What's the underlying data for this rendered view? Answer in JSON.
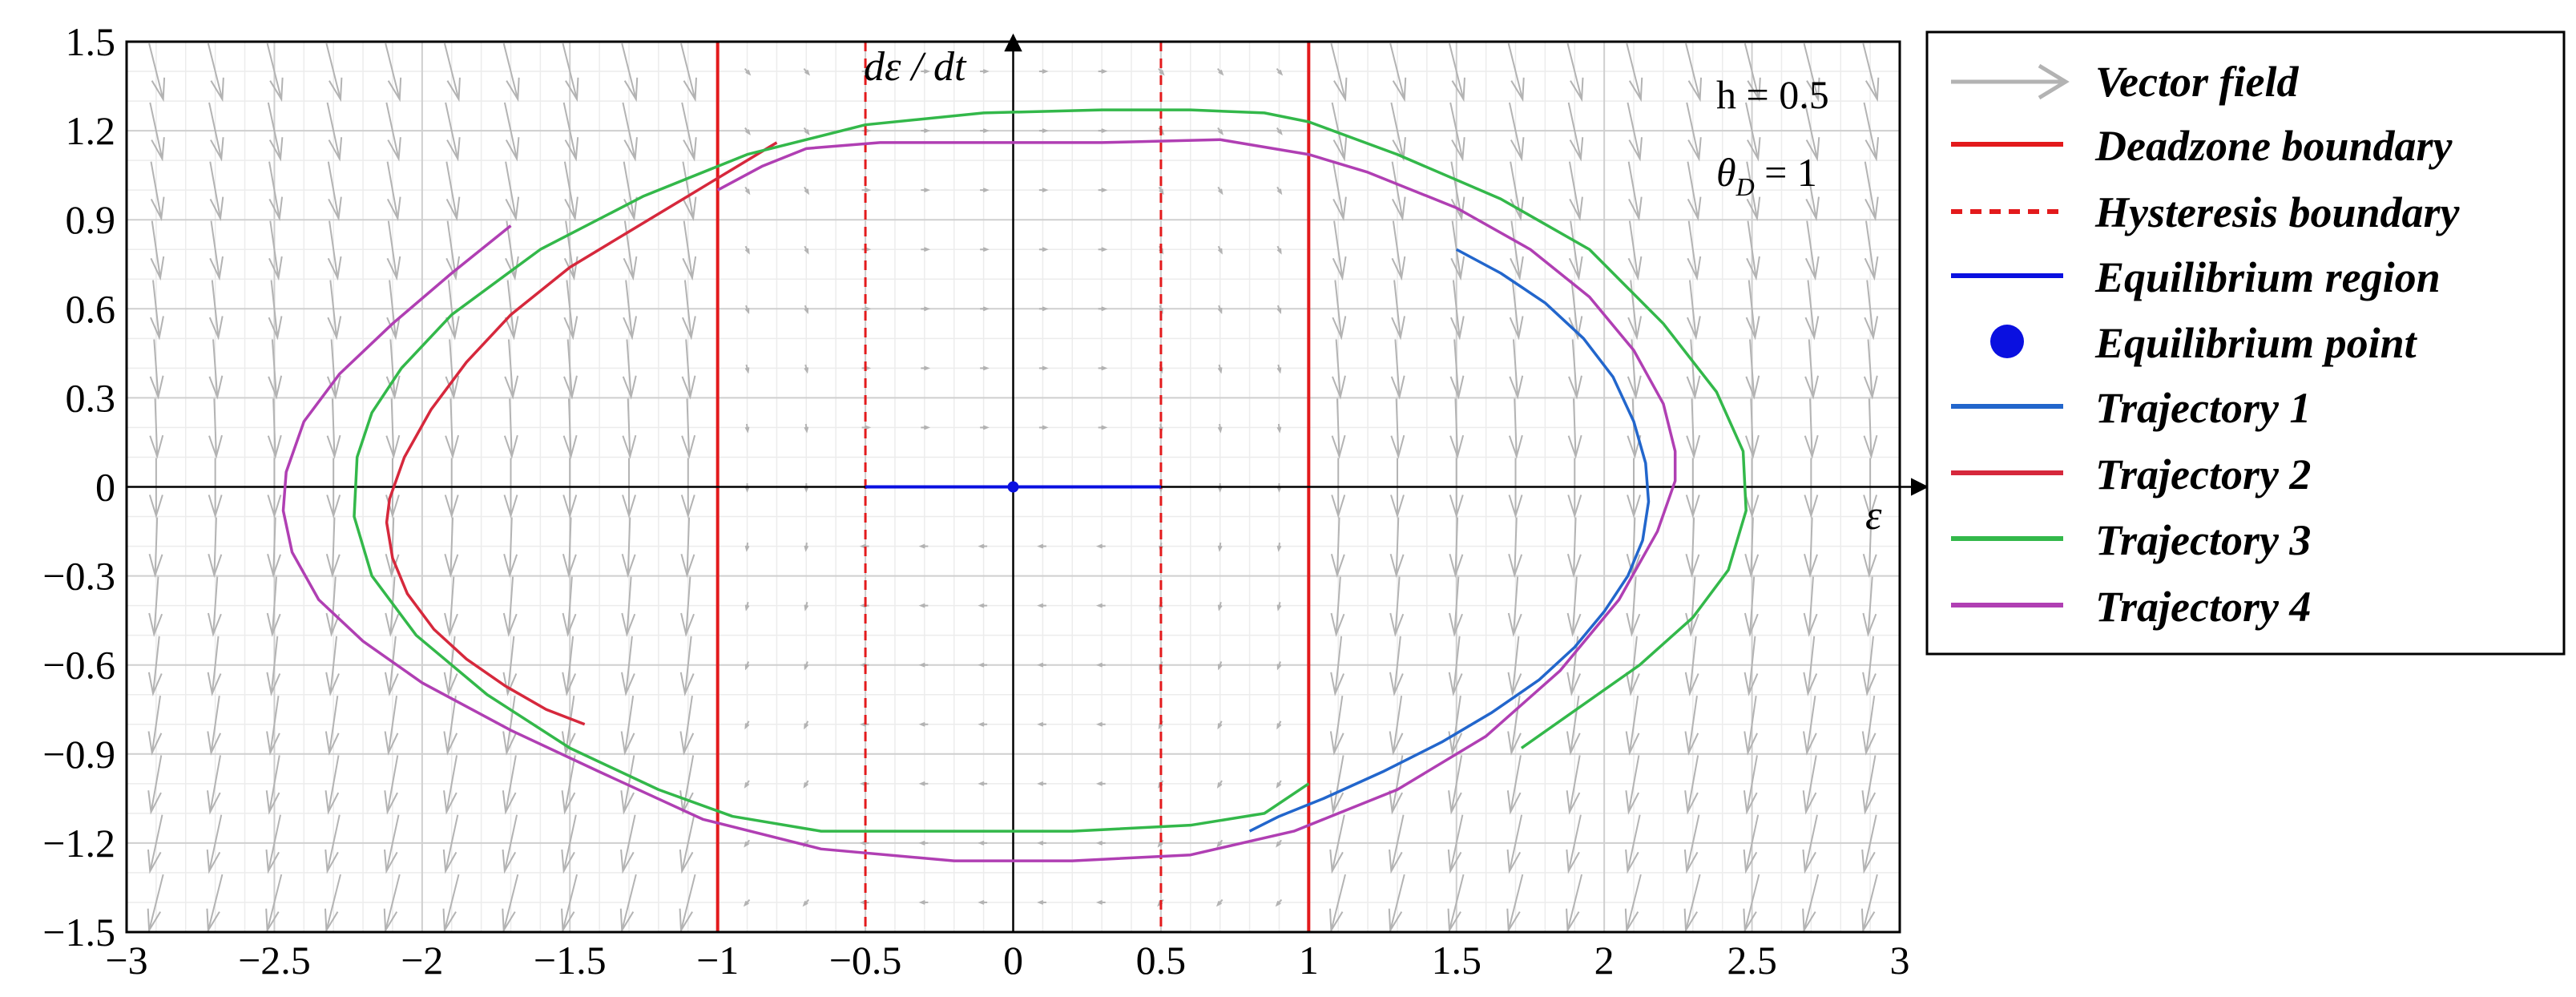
{
  "chart_data": {
    "type": "line",
    "xlabel": "ε",
    "ylabel": "dε / dt",
    "xlim": [
      -3,
      3
    ],
    "ylim": [
      -1.5,
      1.5
    ],
    "xticks": [
      -3,
      -2.5,
      -2,
      -1.5,
      -1,
      -0.5,
      0,
      0.5,
      1,
      1.5,
      2,
      2.5,
      3
    ],
    "yticks": [
      -1.5,
      -1.2,
      -0.9,
      -0.6,
      -0.3,
      0,
      0.3,
      0.6,
      0.9,
      1.2,
      1.5
    ],
    "xtick_labels": [
      "−3",
      "−2.5",
      "−2",
      "−1.5",
      "−1",
      "−0.5",
      "0",
      "0.5",
      "1",
      "1.5",
      "2",
      "2.5",
      "3"
    ],
    "ytick_labels": [
      "−1.5",
      "−1.2",
      "−0.9",
      "−0.6",
      "−0.3",
      "0",
      "0.3",
      "0.6",
      "0.9",
      "1.2",
      "1.5"
    ],
    "grid": true,
    "legend_position": "right-outside",
    "annotations": {
      "h": "h = 0.5",
      "theta": "θ",
      "theta_sub": "D",
      "theta_val": " = 1"
    },
    "vector_field": {
      "name": "Vector field",
      "color": "#b3b3b3"
    },
    "deadzone_boundary": {
      "name": "Deadzone boundary",
      "x": [
        -1,
        1
      ],
      "color": "#e31a1c"
    },
    "hysteresis_boundary": {
      "name": "Hysteresis boundary",
      "x": [
        -0.5,
        0.5
      ],
      "color": "#e31a1c"
    },
    "equilibrium_region": {
      "name": "Equilibrium region",
      "x": [
        -0.5,
        0.5
      ],
      "y": 0,
      "color": "#0a10e0"
    },
    "equilibrium_point": {
      "name": "Equilibrium point",
      "x": 0,
      "y": 0,
      "color": "#0a10e0"
    },
    "series": [
      {
        "name": "Trajectory 1",
        "color": "#2266cc",
        "x": [
          1.5,
          1.65,
          1.8,
          1.93,
          2.03,
          2.1,
          2.14,
          2.15,
          2.13,
          2.08,
          2.0,
          1.9,
          1.78,
          1.62,
          1.45,
          1.25,
          1.05,
          0.9,
          0.8
        ],
        "y": [
          0.8,
          0.72,
          0.62,
          0.5,
          0.37,
          0.22,
          0.08,
          -0.05,
          -0.18,
          -0.3,
          -0.42,
          -0.54,
          -0.65,
          -0.76,
          -0.86,
          -0.96,
          -1.05,
          -1.11,
          -1.16
        ]
      },
      {
        "name": "Trajectory 2",
        "color": "#d6283c",
        "x": [
          -0.8,
          -0.9,
          -1.1,
          -1.3,
          -1.5,
          -1.7,
          -1.85,
          -1.97,
          -2.06,
          -2.11,
          -2.12,
          -2.1,
          -2.05,
          -1.96,
          -1.85,
          -1.72,
          -1.58,
          -1.45
        ],
        "y": [
          1.16,
          1.1,
          0.98,
          0.86,
          0.74,
          0.58,
          0.42,
          0.26,
          0.1,
          -0.04,
          -0.12,
          -0.24,
          -0.36,
          -0.48,
          -0.58,
          -0.67,
          -0.75,
          -0.8
        ]
      },
      {
        "name": "Trajectory 3",
        "color": "#33b84a",
        "x": [
          1.0,
          0.85,
          0.6,
          0.2,
          -0.2,
          -0.65,
          -0.95,
          -1.2,
          -1.5,
          -1.78,
          -2.02,
          -2.17,
          -2.23,
          -2.22,
          -2.17,
          -2.07,
          -1.9,
          -1.6,
          -1.25,
          -0.9,
          -0.5,
          -0.1,
          0.3,
          0.6,
          0.85,
          1.0,
          1.3,
          1.65,
          1.95,
          2.2,
          2.38,
          2.47,
          2.48,
          2.42,
          2.3,
          2.12,
          1.92,
          1.72
        ],
        "y": [
          -1.0,
          -1.1,
          -1.14,
          -1.16,
          -1.16,
          -1.16,
          -1.11,
          -1.02,
          -0.88,
          -0.7,
          -0.5,
          -0.3,
          -0.1,
          0.1,
          0.25,
          0.4,
          0.58,
          0.8,
          0.98,
          1.12,
          1.22,
          1.26,
          1.27,
          1.27,
          1.26,
          1.23,
          1.12,
          0.97,
          0.8,
          0.55,
          0.32,
          0.12,
          -0.08,
          -0.28,
          -0.44,
          -0.6,
          -0.74,
          -0.88
        ]
      },
      {
        "name": "Trajectory 4",
        "color": "#b03fb3",
        "x": [
          -1.7,
          -1.9,
          -2.1,
          -2.28,
          -2.4,
          -2.46,
          -2.47,
          -2.44,
          -2.35,
          -2.2,
          -2.0,
          -1.7,
          -1.4,
          -1.05,
          -0.65,
          -0.2,
          0.2,
          0.6,
          0.95,
          1.3,
          1.6,
          1.85,
          2.05,
          2.18,
          2.24,
          2.24,
          2.2,
          2.1,
          1.95,
          1.75,
          1.5,
          1.2,
          1.0,
          0.7,
          0.3,
          -0.1,
          -0.45,
          -0.7,
          -0.85,
          -1.0
        ],
        "y": [
          0.88,
          0.72,
          0.55,
          0.38,
          0.22,
          0.05,
          -0.08,
          -0.22,
          -0.38,
          -0.52,
          -0.66,
          -0.82,
          -0.96,
          -1.12,
          -1.22,
          -1.26,
          -1.26,
          -1.24,
          -1.16,
          -1.02,
          -0.84,
          -0.62,
          -0.38,
          -0.15,
          0.02,
          0.12,
          0.28,
          0.46,
          0.64,
          0.8,
          0.94,
          1.06,
          1.12,
          1.17,
          1.16,
          1.16,
          1.16,
          1.14,
          1.08,
          1.0
        ]
      }
    ]
  }
}
